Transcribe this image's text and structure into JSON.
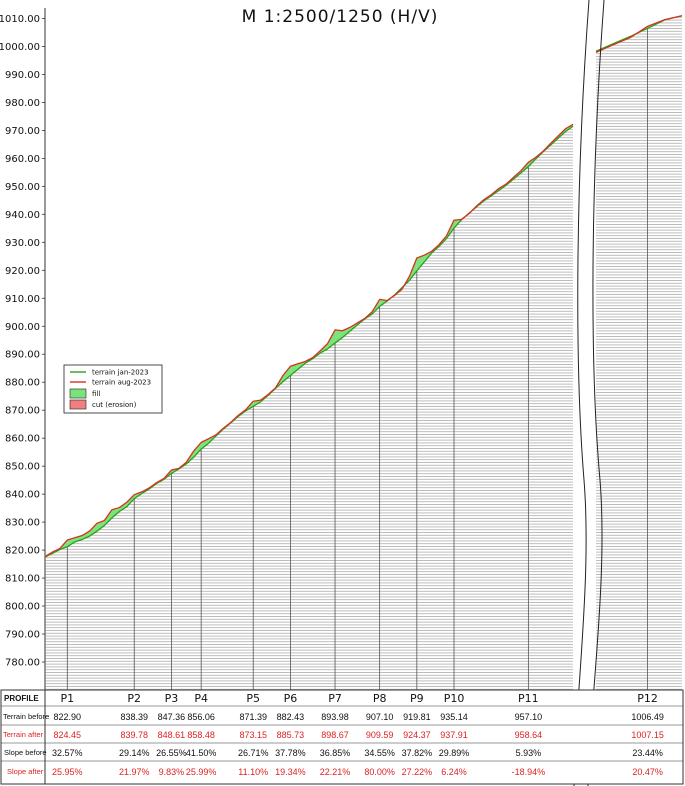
{
  "chart_data": {
    "type": "line",
    "title": "M 1:2500/1250 (H/V)",
    "ylim": [
      772,
      1011
    ],
    "y_ticks": [
      780,
      790,
      800,
      810,
      820,
      830,
      840,
      850,
      860,
      870,
      880,
      890,
      900,
      910,
      920,
      930,
      940,
      950,
      960,
      970,
      980,
      990,
      1000,
      1010
    ],
    "y_tick_labels": [
      "780.00",
      "790.00",
      "800.00",
      "810.00",
      "820.00",
      "830.00",
      "840.00",
      "850.00",
      "860.00",
      "870.00",
      "880.00",
      "890.00",
      "900.00",
      "910.00",
      "920.00",
      "930.00",
      "940.00",
      "950.00",
      "960.00",
      "970.00",
      "980.00",
      "990.00",
      "1000.00",
      "1010.00"
    ],
    "axis_break": "between P11 and P12",
    "grid": "horizontal hatching below terrain",
    "legend": {
      "placement": "middle-left",
      "entries": [
        {
          "label": "terrain jan-2023",
          "color": "#2e9e1e",
          "kind": "line"
        },
        {
          "label": "terrain aug-2023",
          "color": "#d83020",
          "kind": "line"
        },
        {
          "label": "fill",
          "color": "#7be37b",
          "kind": "box"
        },
        {
          "label": "cut (erosion)",
          "color": "#f08080",
          "kind": "box"
        }
      ]
    },
    "profiles": [
      {
        "name": "P1",
        "terrain_before": "822.90",
        "terrain_after": "824.45",
        "slope_before": "32.57%",
        "slope_after": "25.95%"
      },
      {
        "name": "P2",
        "terrain_before": "838.39",
        "terrain_after": "839.78",
        "slope_before": "29.14%",
        "slope_after": "21.97%"
      },
      {
        "name": "P3",
        "terrain_before": "847.36",
        "terrain_after": "848.61",
        "slope_before": "26.55%",
        "slope_after": "9.83%"
      },
      {
        "name": "P4",
        "terrain_before": "856.06",
        "terrain_after": "858.48",
        "slope_before": "41.50%",
        "slope_after": "25.99%"
      },
      {
        "name": "P5",
        "terrain_before": "871.39",
        "terrain_after": "873.15",
        "slope_before": "26.71%",
        "slope_after": "11.10%"
      },
      {
        "name": "P6",
        "terrain_before": "882.43",
        "terrain_after": "885.73",
        "slope_before": "37.78%",
        "slope_after": "19.34%"
      },
      {
        "name": "P7",
        "terrain_before": "893.98",
        "terrain_after": "898.67",
        "slope_before": "36.85%",
        "slope_after": "22.21%"
      },
      {
        "name": "P8",
        "terrain_before": "907.10",
        "terrain_after": "909.59",
        "slope_before": "34.55%",
        "slope_after": "80.00%"
      },
      {
        "name": "P9",
        "terrain_before": "919.81",
        "terrain_after": "924.37",
        "slope_before": "37.82%",
        "slope_after": "27.22%"
      },
      {
        "name": "P10",
        "terrain_before": "935.14",
        "terrain_after": "937.91",
        "slope_before": "29.89%",
        "slope_after": "6.24%"
      },
      {
        "name": "P11",
        "terrain_before": "957.10",
        "terrain_after": "958.64",
        "slope_before": "5.93%",
        "slope_after": "-18.94%"
      },
      {
        "name": "P12",
        "terrain_before": "1006.49",
        "terrain_after": "1007.15",
        "slope_before": "23.44%",
        "slope_after": "20.47%"
      }
    ],
    "series": [
      {
        "name": "terrain jan-2023",
        "color": "#2e9e1e",
        "points": [
          [
            0,
            817.5
          ],
          [
            1,
            818.8
          ],
          [
            2,
            820.2
          ],
          [
            3,
            821.2
          ],
          [
            4,
            822.9
          ],
          [
            5,
            823.8
          ],
          [
            6,
            825.0
          ],
          [
            7,
            826.8
          ],
          [
            8,
            828.8
          ],
          [
            9,
            831.5
          ],
          [
            10,
            833.8
          ],
          [
            11,
            835.5
          ],
          [
            12,
            838.4
          ],
          [
            13,
            840.2
          ],
          [
            14,
            841.8
          ],
          [
            15,
            843.8
          ],
          [
            16,
            845.3
          ],
          [
            17,
            847.4
          ],
          [
            18,
            849.0
          ],
          [
            19,
            850.8
          ],
          [
            20,
            853.2
          ],
          [
            21,
            856.1
          ],
          [
            22,
            858.2
          ],
          [
            23,
            860.8
          ],
          [
            24,
            863.3
          ],
          [
            25,
            865.5
          ],
          [
            26,
            867.8
          ],
          [
            27,
            869.8
          ],
          [
            28,
            871.4
          ],
          [
            29,
            873.0
          ],
          [
            30,
            875.3
          ],
          [
            31,
            877.8
          ],
          [
            32,
            880.2
          ],
          [
            33,
            882.4
          ],
          [
            34,
            884.6
          ],
          [
            35,
            886.8
          ],
          [
            36,
            888.4
          ],
          [
            37,
            890.4
          ],
          [
            38,
            891.9
          ],
          [
            39,
            894.0
          ],
          [
            40,
            896.0
          ],
          [
            41,
            898.2
          ],
          [
            42,
            900.5
          ],
          [
            43,
            902.6
          ],
          [
            44,
            904.4
          ],
          [
            45,
            907.1
          ],
          [
            46,
            909.0
          ],
          [
            47,
            911.2
          ],
          [
            48,
            913.8
          ],
          [
            49,
            916.4
          ],
          [
            50,
            919.8
          ],
          [
            51,
            923.0
          ],
          [
            52,
            926.2
          ],
          [
            53,
            928.6
          ],
          [
            54,
            931.4
          ],
          [
            55,
            935.1
          ],
          [
            56,
            938.0
          ],
          [
            57,
            940.4
          ],
          [
            58,
            942.6
          ],
          [
            59,
            944.8
          ],
          [
            60,
            946.6
          ],
          [
            61,
            948.5
          ],
          [
            62,
            950.4
          ],
          [
            63,
            952.6
          ],
          [
            64,
            954.8
          ],
          [
            65,
            957.1
          ],
          [
            66,
            959.8
          ],
          [
            67,
            962.4
          ],
          [
            68,
            964.8
          ],
          [
            69,
            967.2
          ],
          [
            70,
            969.6
          ],
          [
            71,
            971.5
          ],
          [
            72,
            998.3
          ],
          [
            73,
            1001.0
          ],
          [
            74,
            1003.6
          ],
          [
            75,
            1006.5
          ],
          [
            76,
            1009.5
          ],
          [
            77,
            1011.0
          ]
        ]
      },
      {
        "name": "terrain aug-2023",
        "color": "#d83020",
        "points": [
          [
            0,
            817.7
          ],
          [
            1,
            819.3
          ],
          [
            2,
            820.6
          ],
          [
            3,
            823.6
          ],
          [
            4,
            824.4
          ],
          [
            5,
            825.2
          ],
          [
            6,
            826.8
          ],
          [
            7,
            829.6
          ],
          [
            8,
            830.6
          ],
          [
            9,
            834.4
          ],
          [
            10,
            835.2
          ],
          [
            11,
            837.1
          ],
          [
            12,
            839.8
          ],
          [
            13,
            840.8
          ],
          [
            14,
            842.2
          ],
          [
            15,
            844.1
          ],
          [
            16,
            845.6
          ],
          [
            17,
            848.6
          ],
          [
            18,
            849.2
          ],
          [
            19,
            851.4
          ],
          [
            20,
            855.4
          ],
          [
            21,
            858.5
          ],
          [
            22,
            859.8
          ],
          [
            23,
            861.2
          ],
          [
            24,
            863.6
          ],
          [
            25,
            865.7
          ],
          [
            26,
            868.2
          ],
          [
            27,
            870.2
          ],
          [
            28,
            873.2
          ],
          [
            29,
            873.6
          ],
          [
            30,
            875.6
          ],
          [
            31,
            878.0
          ],
          [
            32,
            882.4
          ],
          [
            33,
            885.7
          ],
          [
            34,
            886.6
          ],
          [
            35,
            887.4
          ],
          [
            36,
            888.8
          ],
          [
            37,
            891.2
          ],
          [
            38,
            893.8
          ],
          [
            39,
            898.7
          ],
          [
            40,
            898.4
          ],
          [
            41,
            899.6
          ],
          [
            42,
            901.2
          ],
          [
            43,
            902.8
          ],
          [
            44,
            905.2
          ],
          [
            45,
            909.6
          ],
          [
            46,
            909.2
          ],
          [
            47,
            911.0
          ],
          [
            48,
            913.2
          ],
          [
            49,
            917.8
          ],
          [
            50,
            924.4
          ],
          [
            51,
            925.4
          ],
          [
            52,
            926.8
          ],
          [
            53,
            929.2
          ],
          [
            54,
            932.4
          ],
          [
            55,
            937.9
          ],
          [
            56,
            938.2
          ],
          [
            57,
            940.2
          ],
          [
            58,
            942.9
          ],
          [
            59,
            945.2
          ],
          [
            60,
            947.0
          ],
          [
            61,
            949.2
          ],
          [
            62,
            950.8
          ],
          [
            63,
            953.2
          ],
          [
            64,
            955.6
          ],
          [
            65,
            958.6
          ],
          [
            66,
            960.4
          ],
          [
            67,
            962.6
          ],
          [
            68,
            965.4
          ],
          [
            69,
            968.0
          ],
          [
            70,
            970.6
          ],
          [
            71,
            972.2
          ],
          [
            72,
            997.9
          ],
          [
            73,
            1000.6
          ],
          [
            74,
            1003.2
          ],
          [
            75,
            1007.2
          ],
          [
            76,
            1009.6
          ],
          [
            77,
            1011.0
          ]
        ]
      }
    ]
  },
  "table": {
    "row_labels": [
      "PROFILE",
      "Terrain before",
      "Terrain after",
      "Slope before",
      "Slope after"
    ]
  }
}
